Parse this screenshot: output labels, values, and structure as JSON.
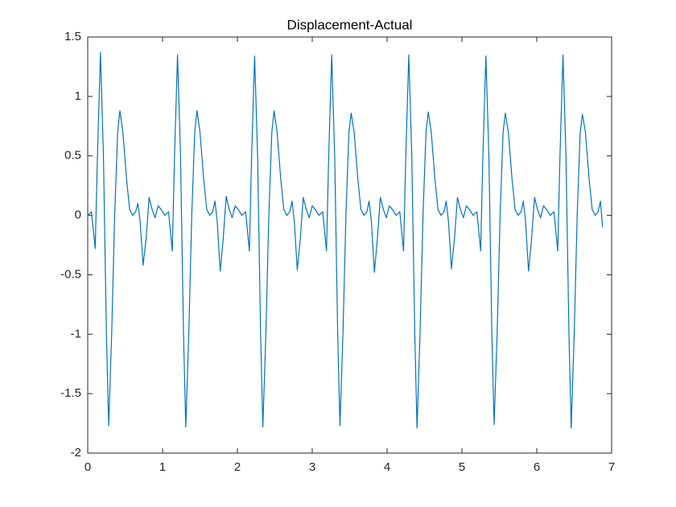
{
  "chart_data": {
    "type": "line",
    "title": "Displacement-Actual",
    "color": "#0072bd",
    "xlim": [
      0,
      7
    ],
    "xticks": [
      0,
      1,
      2,
      3,
      4,
      5,
      6,
      7
    ],
    "ylim": [
      -2,
      1.5
    ],
    "yticks": [
      -2,
      -1.5,
      -1,
      -0.5,
      0,
      0.5,
      1,
      1.5
    ],
    "grid": false,
    "x": [
      0,
      0.05,
      0.1,
      0.13,
      0.17,
      0.21,
      0.25,
      0.28,
      0.32,
      0.36,
      0.4,
      0.43,
      0.47,
      0.52,
      0.56,
      0.6,
      0.64,
      0.67,
      0.7,
      0.74,
      0.78,
      0.82,
      0.86,
      0.9,
      0.94,
      0.98,
      1.03,
      1.08,
      1.13,
      1.16,
      1.2,
      1.24,
      1.28,
      1.31,
      1.35,
      1.39,
      1.43,
      1.46,
      1.5,
      1.55,
      1.59,
      1.63,
      1.67,
      1.7,
      1.73,
      1.77,
      1.81,
      1.85,
      1.89,
      1.93,
      1.97,
      2.01,
      2.06,
      2.11,
      2.16,
      2.19,
      2.23,
      2.27,
      2.31,
      2.34,
      2.38,
      2.42,
      2.46,
      2.49,
      2.53,
      2.58,
      2.62,
      2.66,
      2.7,
      2.73,
      2.76,
      2.8,
      2.84,
      2.88,
      2.92,
      2.96,
      3.0,
      3.04,
      3.09,
      3.14,
      3.19,
      3.22,
      3.26,
      3.3,
      3.34,
      3.37,
      3.41,
      3.45,
      3.49,
      3.52,
      3.56,
      3.61,
      3.65,
      3.69,
      3.73,
      3.76,
      3.79,
      3.83,
      3.87,
      3.91,
      3.95,
      3.99,
      4.03,
      4.07,
      4.12,
      4.17,
      4.22,
      4.25,
      4.29,
      4.33,
      4.37,
      4.4,
      4.44,
      4.48,
      4.52,
      4.55,
      4.59,
      4.64,
      4.68,
      4.72,
      4.76,
      4.79,
      4.82,
      4.86,
      4.9,
      4.94,
      4.98,
      5.02,
      5.06,
      5.1,
      5.15,
      5.2,
      5.25,
      5.28,
      5.32,
      5.36,
      5.4,
      5.43,
      5.47,
      5.51,
      5.55,
      5.58,
      5.62,
      5.67,
      5.71,
      5.75,
      5.79,
      5.82,
      5.85,
      5.89,
      5.93,
      5.97,
      6.01,
      6.05,
      6.09,
      6.13,
      6.18,
      6.23,
      6.28,
      6.31,
      6.35,
      6.39,
      6.43,
      6.46,
      6.5,
      6.54,
      6.58,
      6.61,
      6.65,
      6.7,
      6.74,
      6.78,
      6.82,
      6.85,
      6.88
    ],
    "values": [
      0,
      0.03,
      -0.28,
      0.5,
      1.37,
      0.5,
      -1.0,
      -1.77,
      -1.0,
      0,
      0.7,
      0.88,
      0.7,
      0.3,
      0.05,
      0,
      0.03,
      0.1,
      -0.05,
      -0.42,
      -0.2,
      0.15,
      0.05,
      -0.02,
      0.08,
      0.05,
      0,
      0.03,
      -0.3,
      0.5,
      1.35,
      0.5,
      -1.0,
      -1.78,
      -1.0,
      0,
      0.7,
      0.88,
      0.7,
      0.3,
      0.05,
      0,
      0.03,
      0.12,
      -0.05,
      -0.47,
      -0.2,
      0.16,
      0.05,
      -0.02,
      0.08,
      0.05,
      0,
      0.03,
      -0.3,
      0.5,
      1.34,
      0.5,
      -1.0,
      -1.78,
      -1.0,
      0,
      0.7,
      0.88,
      0.7,
      0.3,
      0.05,
      0,
      0.03,
      0.12,
      -0.05,
      -0.46,
      -0.2,
      0.15,
      0.05,
      -0.02,
      0.08,
      0.05,
      0,
      0.03,
      -0.3,
      0.5,
      1.35,
      0.5,
      -1.0,
      -1.77,
      -1.0,
      0,
      0.7,
      0.86,
      0.7,
      0.3,
      0.05,
      0,
      0.03,
      0.12,
      -0.05,
      -0.48,
      -0.2,
      0.15,
      0.05,
      -0.02,
      0.08,
      0.05,
      0,
      0.03,
      -0.3,
      0.5,
      1.35,
      0.5,
      -1.0,
      -1.79,
      -1.0,
      0,
      0.7,
      0.87,
      0.7,
      0.3,
      0.05,
      0,
      0.03,
      0.12,
      -0.05,
      -0.45,
      -0.2,
      0.15,
      0.05,
      -0.02,
      0.08,
      0.05,
      0,
      0.03,
      -0.3,
      0.5,
      1.34,
      0.5,
      -1.0,
      -1.76,
      -1.0,
      0,
      0.7,
      0.86,
      0.7,
      0.3,
      0.05,
      0,
      0.03,
      0.12,
      -0.05,
      -0.47,
      -0.2,
      0.15,
      0.05,
      -0.02,
      0.08,
      0.05,
      0,
      0.03,
      -0.3,
      0.5,
      1.35,
      0.5,
      -1.0,
      -1.79,
      -1.0,
      0,
      0.7,
      0.85,
      0.7,
      0.3,
      0.05,
      0,
      0.03,
      0.12,
      -0.1
    ]
  }
}
